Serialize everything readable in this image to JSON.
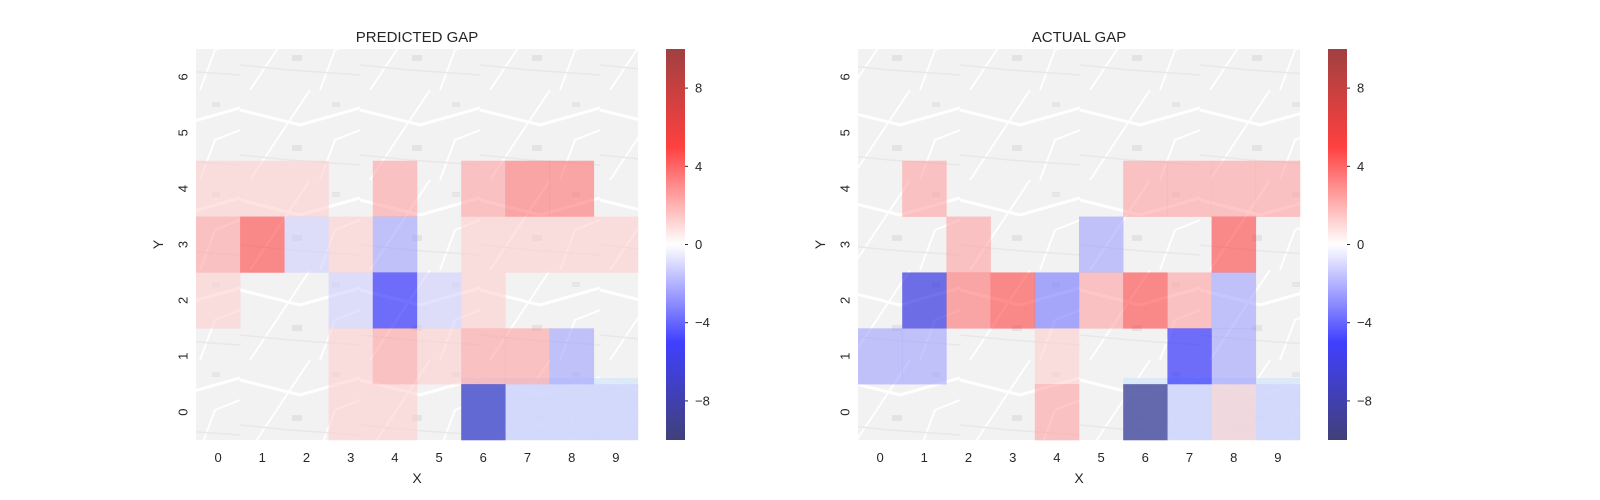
{
  "chart_data": [
    {
      "type": "heatmap",
      "title": "PREDICTED GAP",
      "xlabel": "X",
      "ylabel": "Y",
      "x_ticks": [
        "0",
        "1",
        "2",
        "3",
        "4",
        "5",
        "6",
        "7",
        "8",
        "9"
      ],
      "y_ticks": [
        "0",
        "1",
        "2",
        "3",
        "4",
        "5",
        "6"
      ],
      "grid": false,
      "background": "street map",
      "colormap": "seismic (blue-white-red)",
      "clim": [
        -10,
        10
      ],
      "colorbar_ticks": [
        "−8",
        "−4",
        "0",
        "4",
        "8"
      ],
      "colorbar_values": [
        -8,
        -4,
        0,
        4,
        8
      ],
      "rows_y": [
        6,
        5,
        4,
        3,
        2,
        1,
        0
      ],
      "values": [
        [
          0,
          0,
          0,
          0,
          0,
          0,
          0,
          0,
          0,
          0
        ],
        [
          0,
          0,
          0,
          0,
          0,
          0,
          0,
          0,
          0,
          0
        ],
        [
          1,
          1,
          1,
          0,
          2,
          0,
          2,
          3,
          3,
          0
        ],
        [
          2,
          4,
          -1,
          1,
          -2,
          0,
          1,
          1,
          1,
          1
        ],
        [
          1,
          0,
          0,
          -1,
          -5,
          -1,
          1,
          0,
          0,
          0
        ],
        [
          0,
          0,
          0,
          1,
          2,
          1,
          2,
          2,
          -2,
          0
        ],
        [
          0,
          0,
          0,
          1,
          1,
          0,
          -7,
          -1,
          -1,
          -1
        ]
      ]
    },
    {
      "type": "heatmap",
      "title": "ACTUAL GAP",
      "xlabel": "X",
      "ylabel": "Y",
      "x_ticks": [
        "0",
        "1",
        "2",
        "3",
        "4",
        "5",
        "6",
        "7",
        "8",
        "9"
      ],
      "y_ticks": [
        "0",
        "1",
        "2",
        "3",
        "4",
        "5",
        "6"
      ],
      "grid": false,
      "background": "street map",
      "colormap": "seismic (blue-white-red)",
      "clim": [
        -10,
        10
      ],
      "colorbar_ticks": [
        "−8",
        "−4",
        "0",
        "4",
        "8"
      ],
      "colorbar_values": [
        -8,
        -4,
        0,
        4,
        8
      ],
      "rows_y": [
        6,
        5,
        4,
        3,
        2,
        1,
        0
      ],
      "values": [
        [
          0,
          0,
          0,
          0,
          0,
          0,
          0,
          0,
          0,
          0
        ],
        [
          0,
          0,
          0,
          0,
          0,
          0,
          0,
          0,
          0,
          0
        ],
        [
          0,
          2,
          0,
          0,
          0,
          0,
          2,
          2,
          2,
          2
        ],
        [
          0,
          0,
          2,
          0,
          0,
          -2,
          0,
          0,
          4,
          0
        ],
        [
          0,
          -6,
          3,
          4,
          -3,
          2,
          4,
          2,
          -2,
          0
        ],
        [
          -2,
          -2,
          0,
          0,
          1,
          0,
          0,
          -5,
          -2,
          0
        ],
        [
          0,
          0,
          0,
          0,
          2,
          0,
          -9,
          -1,
          1,
          -1
        ]
      ]
    }
  ]
}
